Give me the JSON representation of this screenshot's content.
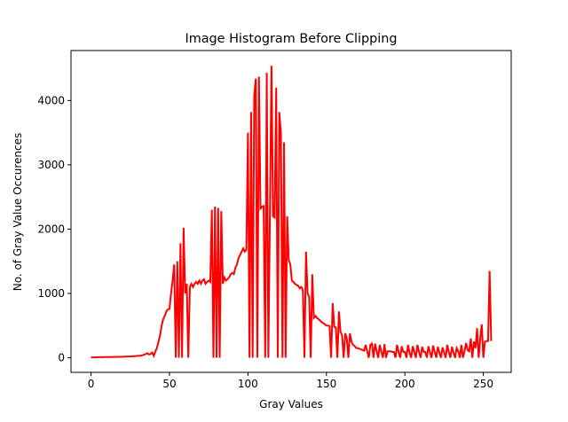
{
  "chart_data": {
    "type": "line",
    "title": "Image Histogram Before Clipping",
    "x_label": "Gray Values",
    "y_label": "No. of Gray Value Occurences",
    "x": [
      0,
      1,
      2,
      3,
      4,
      5,
      6,
      7,
      8,
      9,
      10,
      11,
      12,
      13,
      14,
      15,
      16,
      17,
      18,
      19,
      20,
      21,
      22,
      23,
      24,
      25,
      26,
      27,
      28,
      29,
      30,
      31,
      32,
      33,
      34,
      35,
      36,
      37,
      38,
      39,
      40,
      41,
      42,
      43,
      44,
      45,
      46,
      47,
      48,
      49,
      50,
      51,
      52,
      53,
      54,
      55,
      56,
      57,
      58,
      59,
      60,
      61,
      62,
      63,
      64,
      65,
      66,
      67,
      68,
      69,
      70,
      71,
      72,
      73,
      74,
      75,
      76,
      77,
      78,
      79,
      80,
      81,
      82,
      83,
      84,
      85,
      86,
      87,
      88,
      89,
      90,
      91,
      92,
      93,
      94,
      95,
      96,
      97,
      98,
      99,
      100,
      101,
      102,
      103,
      104,
      105,
      106,
      107,
      108,
      109,
      110,
      111,
      112,
      113,
      114,
      115,
      116,
      117,
      118,
      119,
      120,
      121,
      122,
      123,
      124,
      125,
      126,
      127,
      128,
      129,
      130,
      131,
      132,
      133,
      134,
      135,
      136,
      137,
      138,
      139,
      140,
      141,
      142,
      143,
      144,
      145,
      146,
      147,
      148,
      149,
      150,
      151,
      152,
      153,
      154,
      155,
      156,
      157,
      158,
      159,
      160,
      161,
      162,
      163,
      164,
      165,
      166,
      167,
      168,
      169,
      170,
      171,
      172,
      173,
      174,
      175,
      176,
      177,
      178,
      179,
      180,
      181,
      182,
      183,
      184,
      185,
      186,
      187,
      188,
      189,
      190,
      191,
      192,
      193,
      194,
      195,
      196,
      197,
      198,
      199,
      200,
      201,
      202,
      203,
      204,
      205,
      206,
      207,
      208,
      209,
      210,
      211,
      212,
      213,
      214,
      215,
      216,
      217,
      218,
      219,
      220,
      221,
      222,
      223,
      224,
      225,
      226,
      227,
      228,
      229,
      230,
      231,
      232,
      233,
      234,
      235,
      236,
      237,
      238,
      239,
      240,
      241,
      242,
      243,
      244,
      245,
      246,
      247,
      248,
      249,
      250,
      251,
      252,
      253,
      254,
      255
    ],
    "series": [
      {
        "color": "#ff0000",
        "values": [
          5,
          5,
          5,
          5,
          8,
          10,
          10,
          8,
          10,
          10,
          10,
          10,
          10,
          12,
          12,
          12,
          15,
          15,
          15,
          15,
          15,
          18,
          18,
          20,
          20,
          20,
          22,
          25,
          25,
          28,
          30,
          30,
          35,
          40,
          50,
          60,
          70,
          50,
          60,
          80,
          30,
          100,
          150,
          250,
          350,
          500,
          600,
          650,
          720,
          750,
          760,
          1000,
          1200,
          1450,
          0,
          1500,
          0,
          1780,
          0,
          2020,
          1000,
          1150,
          0,
          1100,
          1150,
          1100,
          1150,
          1180,
          1150,
          1200,
          1150,
          1200,
          1220,
          1150,
          1180,
          1200,
          1180,
          2300,
          0,
          2350,
          0,
          2330,
          0,
          2280,
          1150,
          1250,
          1200,
          1220,
          1250,
          1300,
          1320,
          1300,
          1400,
          1450,
          1550,
          1600,
          1650,
          1700,
          1650,
          1680,
          3500,
          0,
          3820,
          0,
          4080,
          4340,
          0,
          4370,
          2320,
          2350,
          2360,
          0,
          4430,
          0,
          2200,
          4540,
          2200,
          2180,
          4200,
          0,
          3820,
          3480,
          0,
          3350,
          0,
          2200,
          1520,
          1450,
          1200,
          1180,
          1150,
          1130,
          1120,
          1080,
          1100,
          1050,
          0,
          1650,
          1000,
          950,
          0,
          1300,
          620,
          650,
          620,
          600,
          580,
          550,
          540,
          520,
          500,
          500,
          490,
          0,
          850,
          480,
          470,
          0,
          720,
          400,
          350,
          0,
          380,
          300,
          0,
          380,
          250,
          200,
          180,
          150,
          150,
          140,
          130,
          120,
          110,
          200,
          100,
          0,
          200,
          220,
          0,
          220,
          100,
          0,
          200,
          90,
          0,
          210,
          0,
          100,
          100,
          100,
          90,
          90,
          0,
          200,
          90,
          0,
          180,
          90,
          90,
          0,
          200,
          80,
          0,
          180,
          90,
          0,
          200,
          90,
          0,
          170,
          90,
          90,
          0,
          180,
          80,
          0,
          190,
          90,
          0,
          170,
          80,
          0,
          160,
          80,
          0,
          200,
          90,
          0,
          170,
          80,
          0,
          150,
          100,
          0,
          200,
          0,
          100,
          230,
          120,
          100,
          300,
          0,
          250,
          150,
          460,
          0,
          300,
          520,
          0,
          250,
          260,
          260,
          1350,
          260
        ]
      }
    ],
    "xlim": [
      -12.75,
      267.75
    ],
    "ylim": [
      -227,
      4777
    ],
    "xticks": [
      0,
      50,
      100,
      150,
      200,
      250
    ],
    "yticks": [
      0,
      1000,
      2000,
      3000,
      4000
    ]
  }
}
